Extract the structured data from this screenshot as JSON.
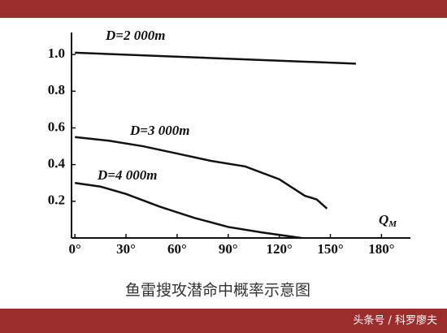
{
  "chart_data": {
    "type": "line",
    "series": [
      {
        "name": "D=2 000m",
        "color": "#111111",
        "x": [
          0,
          165
        ],
        "values": [
          1.01,
          0.95
        ]
      },
      {
        "name": "D=3 000m",
        "color": "#111111",
        "x": [
          0,
          20,
          40,
          60,
          80,
          100,
          120,
          135,
          142,
          148
        ],
        "values": [
          0.55,
          0.53,
          0.5,
          0.46,
          0.42,
          0.39,
          0.32,
          0.23,
          0.21,
          0.16
        ]
      },
      {
        "name": "D=4 000m",
        "color": "#111111",
        "x": [
          0,
          15,
          30,
          50,
          70,
          90,
          110,
          133
        ],
        "values": [
          0.3,
          0.28,
          0.24,
          0.17,
          0.11,
          0.06,
          0.03,
          0
        ]
      }
    ],
    "x_label": {
      "text": "Q",
      "sub": "M"
    },
    "xlim": [
      -2,
      197
    ],
    "ylim": [
      0,
      1.12
    ],
    "xticks": [
      {
        "value": 0,
        "label": "0°"
      },
      {
        "value": 30,
        "label": "30°"
      },
      {
        "value": 60,
        "label": "60°"
      },
      {
        "value": 90,
        "label": "90°"
      },
      {
        "value": 120,
        "label": "120°"
      },
      {
        "value": 150,
        "label": "150°"
      },
      {
        "value": 180,
        "label": "180°"
      }
    ],
    "yticks": [
      0.2,
      0.4,
      0.6,
      0.8,
      {
        "value": 1.0,
        "label": "1.0"
      }
    ],
    "caption": "鱼雷搜攻潜命中概率示意图"
  },
  "watermark": "头条号 / 科罗廖夫"
}
